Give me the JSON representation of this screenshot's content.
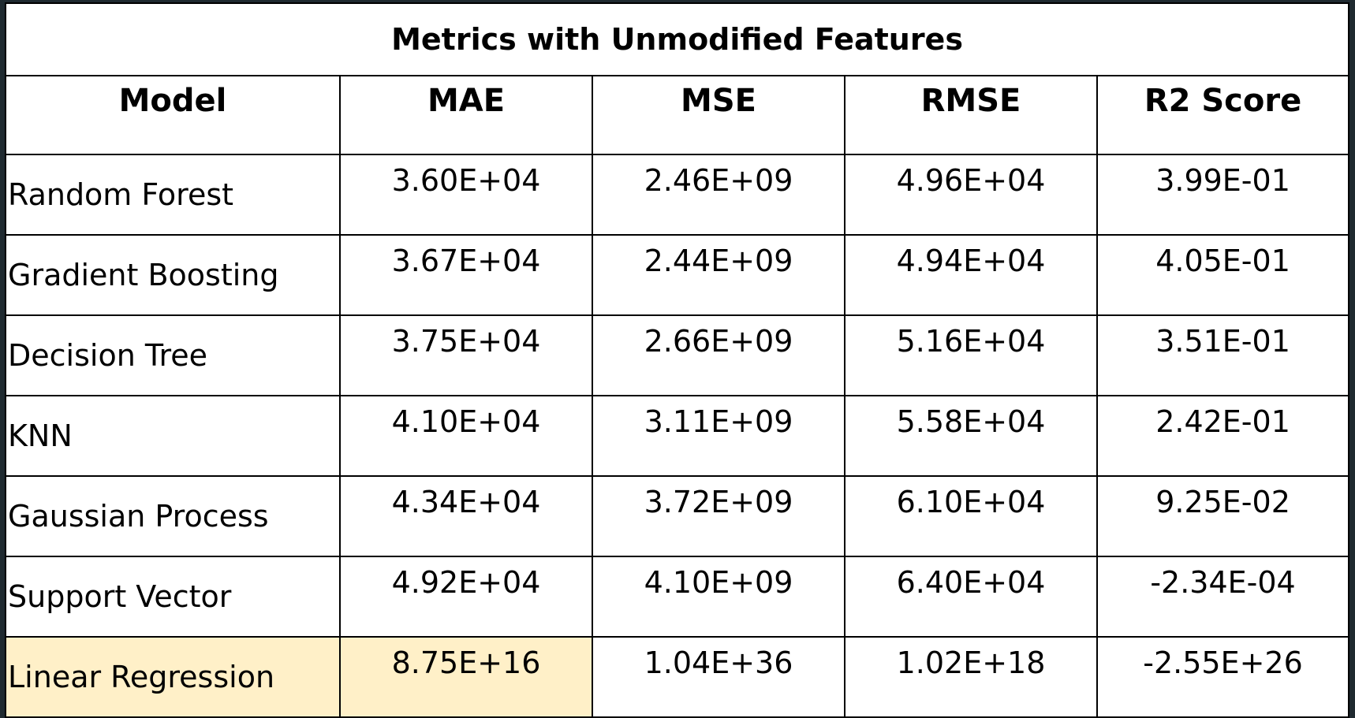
{
  "table": {
    "title": "Metrics with Unmodified Features",
    "columns": [
      "Model",
      "MAE",
      "MSE",
      "RMSE",
      "R2 Score"
    ],
    "rows": [
      {
        "model": "Random Forest",
        "mae": "3.60E+04",
        "mse": "2.46E+09",
        "rmse": "4.96E+04",
        "r2": "3.99E-01"
      },
      {
        "model": "Gradient Boosting",
        "mae": "3.67E+04",
        "mse": "2.44E+09",
        "rmse": "4.94E+04",
        "r2": "4.05E-01"
      },
      {
        "model": "Decision Tree",
        "mae": "3.75E+04",
        "mse": "2.66E+09",
        "rmse": "5.16E+04",
        "r2": "3.51E-01"
      },
      {
        "model": "KNN",
        "mae": "4.10E+04",
        "mse": "3.11E+09",
        "rmse": "5.58E+04",
        "r2": "2.42E-01"
      },
      {
        "model": "Gaussian Process",
        "mae": "4.34E+04",
        "mse": "3.72E+09",
        "rmse": "6.10E+04",
        "r2": "9.25E-02"
      },
      {
        "model": "Support Vector",
        "mae": "4.92E+04",
        "mse": "4.10E+09",
        "rmse": "6.40E+04",
        "r2": "-2.34E-04"
      },
      {
        "model": "Linear Regression",
        "mae": "8.75E+16",
        "mse": "1.04E+36",
        "rmse": "1.02E+18",
        "r2": "-2.55E+26"
      }
    ],
    "highlight_color": "#fff0c8"
  }
}
